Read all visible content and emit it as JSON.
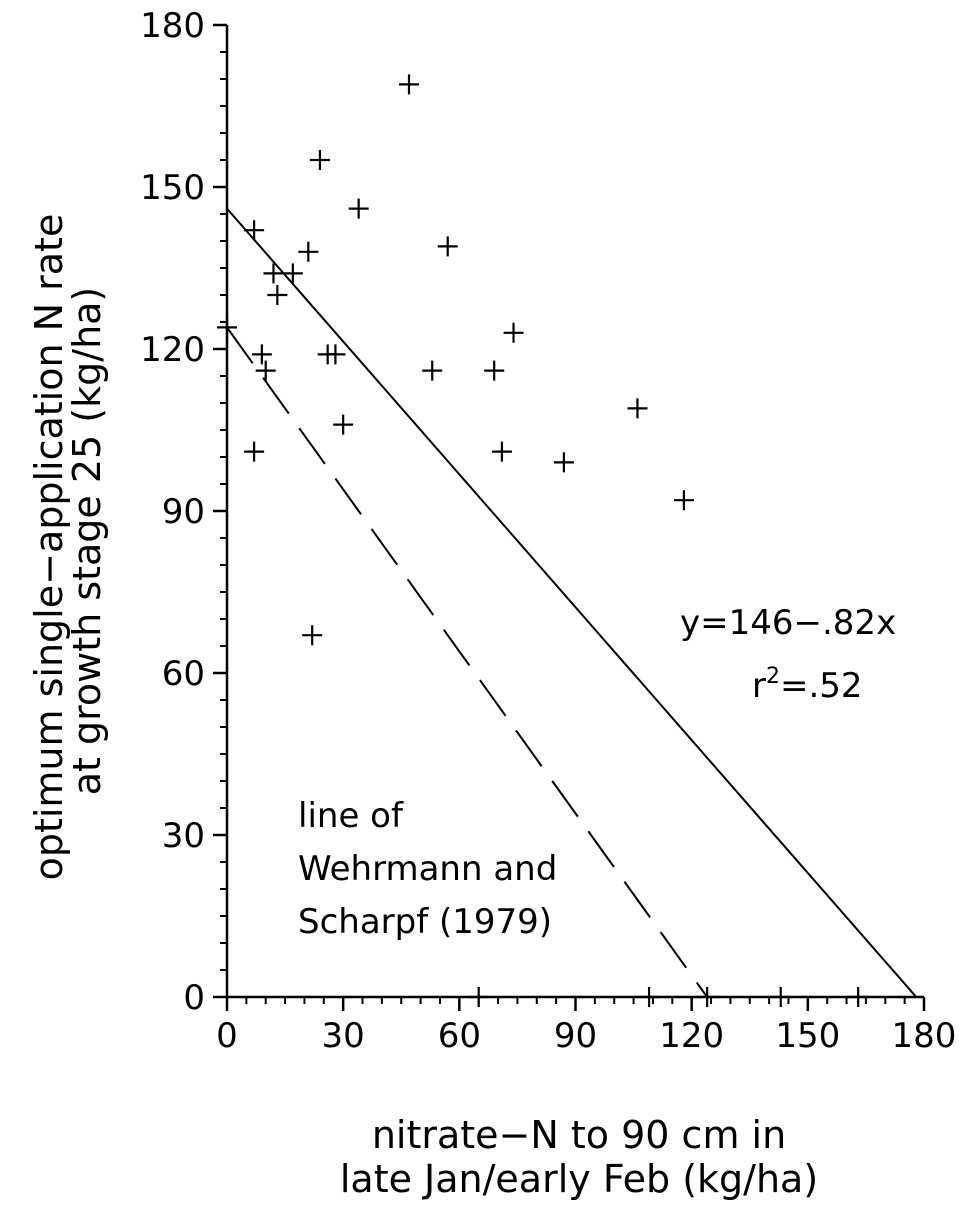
{
  "chart_data": {
    "type": "scatter",
    "xlabel_lines": [
      "nitrate−N to 90 cm in",
      "late Jan/early Feb (kg/ha)"
    ],
    "ylabel_lines": [
      "optimum single−application N rate",
      "at growth stage 25 (kg/ha)"
    ],
    "xlim": [
      0,
      180
    ],
    "ylim": [
      0,
      180
    ],
    "xticks": [
      0,
      30,
      60,
      90,
      120,
      150,
      180
    ],
    "yticks": [
      0,
      30,
      60,
      90,
      120,
      150,
      180
    ],
    "x_tick_labels": [
      "0",
      "30",
      "60",
      "90",
      "120",
      "150",
      "180"
    ],
    "y_tick_labels": [
      "0",
      "30",
      "60",
      "90",
      "120",
      "150",
      "180"
    ],
    "grid": false,
    "marker": "+",
    "points": [
      {
        "x": 0,
        "y": 124
      },
      {
        "x": 7,
        "y": 142
      },
      {
        "x": 7,
        "y": 101
      },
      {
        "x": 9,
        "y": 119
      },
      {
        "x": 10,
        "y": 116
      },
      {
        "x": 12,
        "y": 134
      },
      {
        "x": 13,
        "y": 130
      },
      {
        "x": 17,
        "y": 134
      },
      {
        "x": 21,
        "y": 138
      },
      {
        "x": 22,
        "y": 67
      },
      {
        "x": 24,
        "y": 155
      },
      {
        "x": 26,
        "y": 119
      },
      {
        "x": 28,
        "y": 119
      },
      {
        "x": 30,
        "y": 106
      },
      {
        "x": 34,
        "y": 146
      },
      {
        "x": 47,
        "y": 169
      },
      {
        "x": 53,
        "y": 116
      },
      {
        "x": 57,
        "y": 139
      },
      {
        "x": 65,
        "y": 0
      },
      {
        "x": 69,
        "y": 116
      },
      {
        "x": 71,
        "y": 101
      },
      {
        "x": 74,
        "y": 123
      },
      {
        "x": 87,
        "y": 99
      },
      {
        "x": 106,
        "y": 109
      },
      {
        "x": 109,
        "y": 0
      },
      {
        "x": 118,
        "y": 92
      },
      {
        "x": 124,
        "y": 0
      },
      {
        "x": 143,
        "y": 0
      },
      {
        "x": 163,
        "y": 0
      }
    ],
    "lines": [
      {
        "style": "solid",
        "x": [
          0,
          178
        ],
        "y": [
          146,
          0
        ]
      },
      {
        "style": "dashed",
        "x": [
          0,
          124
        ],
        "y": [
          124,
          0
        ]
      }
    ],
    "annotations": {
      "equation": "y=146−.82x",
      "r2_base": "r",
      "r2_exp": "2",
      "r2_value": "=.52",
      "dashed_label_lines": [
        "line of",
        "Wehrmann and",
        "Scharpf (1979)"
      ]
    }
  }
}
